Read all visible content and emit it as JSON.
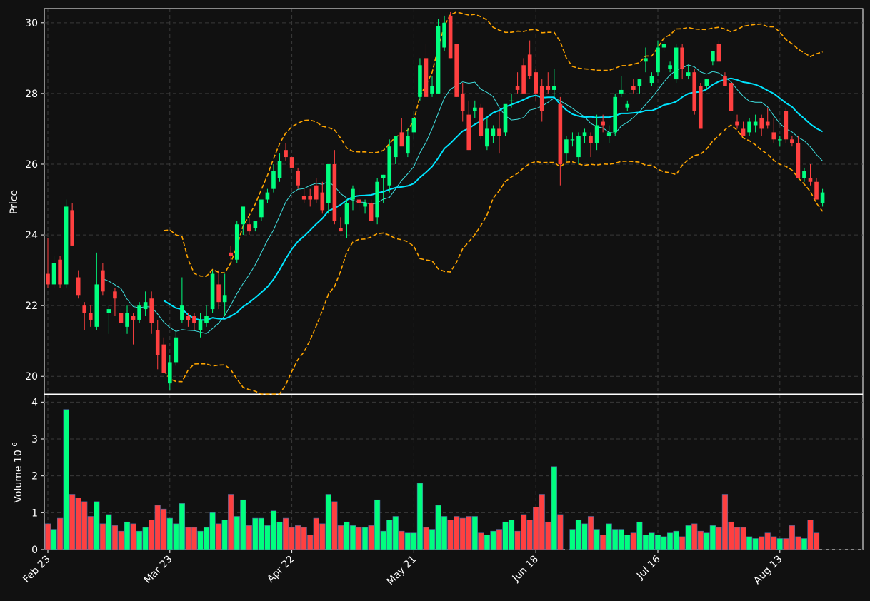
{
  "chart_data": {
    "type": "candlestick",
    "theme": {
      "background": "#111111",
      "up_color": "#00ff7f",
      "down_color": "#ff4040",
      "ma_short_color": "#40e0e0",
      "ma_long_color": "#00e5ff",
      "band_color": "#ffa500",
      "grid_color": "#3a3a3a",
      "axis_color": "#ffffff"
    },
    "grid": true,
    "price_panel": {
      "ylabel": "Price",
      "ylim": [
        19.5,
        30.4
      ],
      "yticks": [
        20,
        22,
        24,
        26,
        28,
        30
      ]
    },
    "volume_panel": {
      "ylabel": "Volume",
      "ylabel_exponent": "10",
      "ylabel_exponent_power": "6",
      "ylim": [
        0,
        4.2
      ],
      "yticks": [
        0,
        1,
        2,
        3,
        4
      ]
    },
    "x_ticks": [
      {
        "label": "Feb 23",
        "index": 0
      },
      {
        "label": "Mar 23",
        "index": 20
      },
      {
        "label": "Apr 22",
        "index": 40
      },
      {
        "label": "May 21",
        "index": 60
      },
      {
        "label": "Jun 18",
        "index": 80
      },
      {
        "label": "Jul 16",
        "index": 100
      },
      {
        "label": "Aug 13",
        "index": 120
      }
    ],
    "candles_ohlc": [
      [
        22.9,
        23.9,
        22.5,
        22.6
      ],
      [
        22.6,
        23.4,
        22.5,
        23.2
      ],
      [
        23.3,
        23.4,
        22.5,
        22.6
      ],
      [
        22.6,
        25.0,
        22.5,
        24.8
      ],
      [
        24.7,
        24.9,
        23.7,
        23.7
      ],
      [
        22.8,
        23.0,
        22.2,
        22.3
      ],
      [
        22.0,
        22.1,
        21.3,
        21.8
      ],
      [
        21.8,
        22.0,
        21.4,
        21.6
      ],
      [
        21.4,
        23.5,
        21.3,
        22.6
      ],
      [
        23.0,
        23.2,
        22.3,
        22.4
      ],
      [
        21.8,
        22.0,
        21.2,
        21.9
      ],
      [
        22.4,
        22.5,
        21.7,
        22.2
      ],
      [
        21.8,
        21.9,
        21.3,
        21.5
      ],
      [
        21.4,
        22.0,
        21.2,
        21.8
      ],
      [
        21.7,
        21.8,
        20.9,
        21.6
      ],
      [
        21.6,
        22.1,
        21.5,
        22.0
      ],
      [
        21.9,
        22.4,
        21.7,
        22.1
      ],
      [
        22.2,
        22.4,
        21.2,
        21.5
      ],
      [
        21.3,
        21.6,
        20.2,
        20.6
      ],
      [
        20.9,
        21.1,
        20.1,
        20.1
      ],
      [
        19.8,
        20.6,
        19.6,
        20.4
      ],
      [
        20.4,
        21.3,
        20.3,
        21.1
      ],
      [
        21.6,
        22.8,
        21.5,
        22.0
      ],
      [
        21.7,
        21.8,
        21.4,
        21.6
      ],
      [
        21.7,
        21.8,
        21.3,
        21.5
      ],
      [
        21.3,
        21.8,
        21.1,
        21.6
      ],
      [
        21.5,
        22.0,
        21.4,
        21.7
      ],
      [
        21.9,
        23.0,
        21.8,
        22.9
      ],
      [
        22.6,
        23.0,
        21.9,
        22.1
      ],
      [
        22.1,
        22.9,
        21.7,
        22.3
      ],
      [
        23.5,
        23.7,
        23.3,
        23.4
      ],
      [
        23.3,
        24.4,
        23.2,
        24.3
      ],
      [
        24.3,
        24.7,
        24.0,
        24.8
      ],
      [
        24.3,
        24.5,
        24.0,
        24.1
      ],
      [
        24.2,
        24.4,
        24.1,
        24.4
      ],
      [
        24.5,
        25.0,
        24.4,
        25.0
      ],
      [
        25.0,
        25.3,
        24.9,
        25.2
      ],
      [
        25.3,
        26.0,
        25.2,
        25.8
      ],
      [
        25.6,
        26.3,
        25.5,
        26.1
      ],
      [
        26.4,
        26.6,
        26.1,
        26.2
      ],
      [
        26.2,
        26.0,
        25.9,
        25.9
      ],
      [
        25.8,
        25.9,
        25.3,
        25.4
      ],
      [
        25.1,
        25.3,
        24.9,
        25.0
      ],
      [
        25.1,
        25.3,
        24.8,
        25.0
      ],
      [
        25.4,
        25.6,
        24.9,
        25.0
      ],
      [
        25.2,
        25.5,
        24.6,
        24.7
      ],
      [
        24.9,
        26.0,
        24.6,
        26.0
      ],
      [
        26.0,
        26.4,
        24.3,
        24.4
      ],
      [
        24.2,
        24.5,
        24.1,
        24.1
      ],
      [
        24.3,
        25.0,
        23.9,
        24.9
      ],
      [
        25.0,
        25.4,
        24.7,
        25.3
      ],
      [
        25.0,
        25.3,
        24.7,
        24.9
      ],
      [
        24.8,
        25.0,
        24.6,
        24.9
      ],
      [
        24.9,
        25.0,
        24.4,
        24.4
      ],
      [
        24.5,
        25.6,
        24.3,
        25.5
      ],
      [
        25.6,
        25.7,
        24.9,
        25.7
      ],
      [
        25.4,
        26.7,
        25.2,
        26.5
      ],
      [
        26.2,
        26.8,
        26.0,
        26.8
      ],
      [
        26.9,
        27.3,
        26.6,
        26.5
      ],
      [
        26.3,
        27.0,
        26.2,
        26.8
      ],
      [
        26.9,
        27.5,
        26.7,
        27.3
      ],
      [
        27.9,
        29.0,
        27.8,
        28.8
      ],
      [
        29.0,
        29.4,
        27.9,
        27.9
      ],
      [
        28.0,
        28.5,
        27.9,
        28.2
      ],
      [
        28.0,
        30.1,
        28.0,
        29.9
      ],
      [
        29.3,
        30.2,
        29.2,
        30.0
      ],
      [
        30.2,
        30.3,
        29.0,
        29.0
      ],
      [
        29.4,
        29.4,
        27.9,
        27.9
      ],
      [
        28.0,
        28.3,
        27.2,
        27.5
      ],
      [
        27.4,
        27.8,
        26.4,
        26.4
      ],
      [
        27.5,
        27.8,
        27.3,
        27.6
      ],
      [
        27.6,
        27.7,
        26.7,
        26.8
      ],
      [
        26.5,
        27.3,
        26.4,
        27.0
      ],
      [
        26.8,
        27.1,
        26.6,
        27.0
      ],
      [
        27.0,
        27.5,
        26.3,
        26.8
      ],
      [
        26.9,
        27.5,
        26.8,
        27.7
      ],
      [
        27.8,
        28.0,
        27.6,
        27.8
      ],
      [
        28.2,
        28.6,
        28.0,
        28.1
      ],
      [
        28.8,
        29.0,
        28.6,
        28.0
      ],
      [
        29.1,
        29.5,
        28.4,
        28.5
      ],
      [
        28.6,
        28.7,
        27.8,
        28.0
      ],
      [
        28.2,
        28.4,
        27.2,
        27.5
      ],
      [
        28.2,
        28.6,
        28.0,
        28.1
      ],
      [
        28.1,
        28.7,
        27.9,
        28.2
      ],
      [
        27.7,
        27.9,
        25.4,
        26.0
      ],
      [
        26.3,
        26.8,
        26.1,
        26.7
      ],
      [
        26.7,
        26.9,
        26.5,
        26.7
      ],
      [
        26.2,
        26.9,
        26.0,
        26.8
      ],
      [
        26.8,
        27.0,
        26.6,
        26.9
      ],
      [
        26.8,
        26.9,
        26.2,
        26.6
      ],
      [
        26.6,
        27.4,
        26.4,
        27.1
      ],
      [
        27.2,
        27.4,
        26.9,
        27.1
      ],
      [
        26.8,
        27.1,
        26.6,
        26.9
      ],
      [
        26.9,
        28.0,
        26.8,
        27.9
      ],
      [
        28.0,
        28.5,
        27.9,
        28.1
      ],
      [
        27.6,
        27.8,
        27.5,
        27.7
      ],
      [
        28.2,
        28.4,
        28.0,
        28.1
      ],
      [
        28.2,
        28.4,
        28.0,
        28.4
      ],
      [
        28.9,
        29.3,
        28.6,
        29.0
      ],
      [
        28.3,
        28.6,
        28.2,
        28.5
      ],
      [
        28.6,
        29.5,
        28.5,
        29.3
      ],
      [
        29.3,
        29.5,
        29.2,
        29.4
      ],
      [
        28.7,
        28.9,
        28.6,
        28.8
      ],
      [
        28.4,
        29.4,
        28.3,
        29.3
      ],
      [
        29.3,
        29.4,
        28.4,
        28.7
      ],
      [
        28.5,
        28.8,
        28.4,
        28.6
      ],
      [
        28.6,
        28.7,
        27.4,
        27.5
      ],
      [
        28.2,
        28.3,
        27.0,
        27.0
      ],
      [
        28.2,
        28.4,
        28.1,
        28.4
      ],
      [
        28.9,
        29.2,
        28.8,
        29.2
      ],
      [
        29.4,
        29.5,
        28.9,
        28.9
      ],
      [
        28.5,
        28.6,
        28.2,
        28.2
      ],
      [
        28.3,
        28.4,
        27.5,
        27.5
      ],
      [
        27.2,
        27.4,
        27.0,
        27.1
      ],
      [
        27.0,
        27.2,
        26.8,
        26.8
      ],
      [
        26.9,
        27.3,
        26.8,
        27.2
      ],
      [
        27.1,
        27.4,
        26.9,
        27.2
      ],
      [
        27.3,
        27.4,
        26.8,
        27.0
      ],
      [
        27.2,
        27.6,
        27.0,
        27.1
      ],
      [
        26.9,
        27.3,
        26.6,
        26.7
      ],
      [
        26.7,
        26.8,
        26.5,
        26.7
      ],
      [
        27.5,
        27.6,
        26.6,
        26.7
      ],
      [
        26.7,
        26.8,
        26.5,
        26.6
      ],
      [
        26.6,
        26.8,
        25.6,
        25.6
      ],
      [
        25.6,
        25.9,
        25.5,
        25.8
      ],
      [
        25.6,
        26.0,
        25.4,
        25.5
      ],
      [
        25.5,
        25.6,
        25.0,
        25.0
      ],
      [
        24.9,
        25.3,
        24.8,
        25.2
      ]
    ],
    "volume_millions": [
      0.7,
      0.55,
      0.85,
      3.8,
      1.5,
      1.4,
      1.3,
      0.9,
      1.3,
      0.7,
      0.95,
      0.65,
      0.5,
      0.75,
      0.7,
      0.5,
      0.6,
      0.8,
      1.2,
      1.1,
      0.85,
      0.7,
      1.25,
      0.6,
      0.6,
      0.5,
      0.6,
      1.0,
      0.7,
      0.8,
      1.5,
      0.9,
      1.35,
      0.65,
      0.85,
      0.85,
      0.65,
      1.05,
      0.75,
      0.85,
      0.6,
      0.65,
      0.6,
      0.4,
      0.85,
      0.7,
      1.5,
      1.3,
      0.65,
      0.75,
      0.65,
      0.6,
      0.6,
      0.65,
      1.35,
      0.5,
      0.8,
      0.9,
      0.5,
      0.45,
      0.45,
      1.8,
      0.6,
      0.55,
      1.2,
      0.9,
      0.8,
      0.9,
      0.85,
      0.9,
      0.9,
      0.45,
      0.4,
      0.5,
      0.55,
      0.75,
      0.8,
      0.5,
      0.95,
      0.8,
      1.15,
      1.5,
      0.75,
      2.25,
      0.95,
      0.0,
      0.55,
      0.8,
      0.7,
      0.9,
      0.55,
      0.4,
      0.7,
      0.55,
      0.55,
      0.4,
      0.45,
      0.75,
      0.4,
      0.45,
      0.4,
      0.35,
      0.45,
      0.5,
      0.35,
      0.65,
      0.7,
      0.5,
      0.45,
      0.65,
      0.6,
      1.5,
      0.75,
      0.6,
      0.6,
      0.35,
      0.3,
      0.35,
      0.45,
      0.35,
      0.3,
      0.3,
      0.65,
      0.35,
      0.3,
      0.8,
      0.45
    ],
    "ma_short_start": 9,
    "ma_long_start": 19,
    "band_start": 19,
    "band_window": 20
  }
}
